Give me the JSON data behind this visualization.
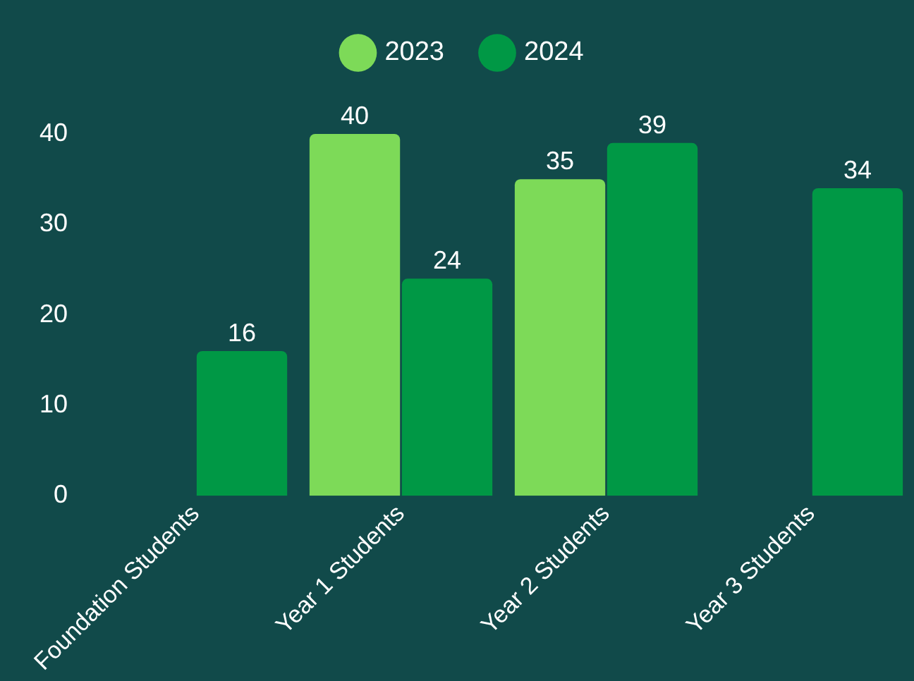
{
  "chart_data": {
    "type": "bar",
    "categories": [
      "Foundation Students",
      "Year 1 Students",
      "Year 2 Students",
      "Year 3 Students"
    ],
    "series": [
      {
        "name": "2023",
        "color": "#7dda58",
        "values": [
          null,
          40,
          35,
          null
        ]
      },
      {
        "name": "2024",
        "color": "#009845",
        "values": [
          16,
          24,
          39,
          34
        ]
      }
    ],
    "ylim": [
      0,
      40
    ],
    "yticks": [
      0,
      10,
      20,
      30,
      40
    ],
    "grid": false,
    "legend": "top",
    "data_labels": true
  }
}
